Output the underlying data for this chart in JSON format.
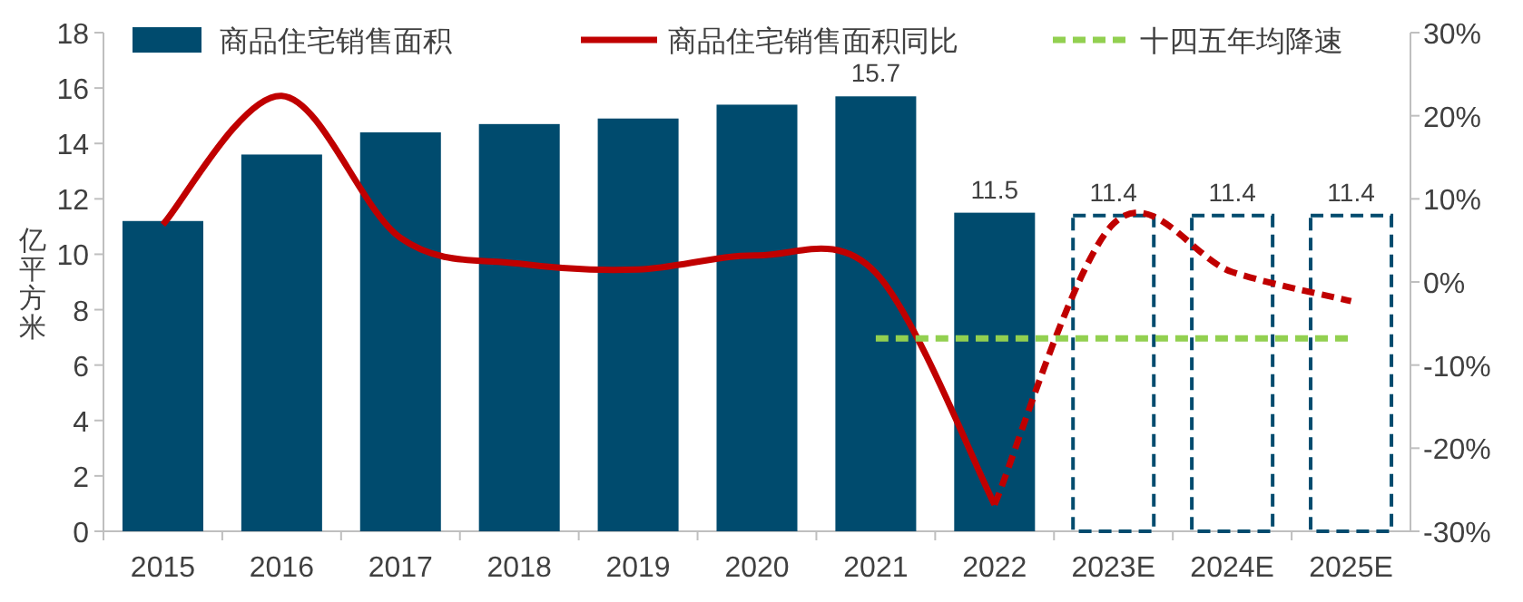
{
  "chart_data": {
    "type": "bar",
    "categories": [
      "2015",
      "2016",
      "2017",
      "2018",
      "2019",
      "2020",
      "2021",
      "2022",
      "2023E",
      "2024E",
      "2025E"
    ],
    "ylabel": "亿平方米",
    "ylim": [
      0,
      18
    ],
    "yticks": [
      0,
      2,
      4,
      6,
      8,
      10,
      12,
      14,
      16,
      18
    ],
    "y2lim": [
      -30,
      30
    ],
    "y2ticks": [
      {
        "value": -30,
        "label": "-30%"
      },
      {
        "value": -20,
        "label": "-20%"
      },
      {
        "value": -10,
        "label": "-10%"
      },
      {
        "value": 0,
        "label": "0%"
      },
      {
        "value": 10,
        "label": "10%"
      },
      {
        "value": 20,
        "label": "20%"
      },
      {
        "value": 30,
        "label": "30%"
      }
    ],
    "legend": "top",
    "grid": false,
    "marker": "none",
    "series": [
      {
        "name": "商品住宅销售面积",
        "color": "#004b6e",
        "values": [
          11.2,
          13.6,
          14.4,
          14.7,
          14.9,
          15.4,
          15.7,
          11.5,
          null,
          null,
          null
        ],
        "value_labels": [
          null,
          null,
          null,
          null,
          null,
          null,
          "15.7",
          "11.5",
          null,
          null,
          null
        ]
      },
      {
        "color": "#004b6e",
        "line_style": "dashed",
        "values": [
          null,
          null,
          null,
          null,
          null,
          null,
          null,
          null,
          11.4,
          11.4,
          11.4
        ],
        "value_labels": [
          null,
          null,
          null,
          null,
          null,
          null,
          null,
          null,
          "11.4",
          "11.4",
          "11.4"
        ]
      },
      {
        "name": "商品住宅销售面积同比",
        "type": "line",
        "axis": "y2",
        "color": "#c00000",
        "line_style": "solid",
        "values": [
          6.9,
          22.4,
          5.3,
          2.2,
          1.5,
          3.2,
          1.1,
          -26.8,
          null,
          null,
          null
        ]
      },
      {
        "type": "line",
        "axis": "y2",
        "color": "#c00000",
        "line_style": "dashed",
        "values": [
          null,
          null,
          null,
          null,
          null,
          null,
          null,
          -26.8,
          7.0,
          1.2,
          -2.3
        ]
      },
      {
        "name": "十四五年均降速",
        "type": "line",
        "axis": "y2",
        "color": "#92d050",
        "line_style": "dashed",
        "values": [
          null,
          null,
          null,
          null,
          null,
          null,
          -6.8,
          -6.8,
          -6.8,
          -6.8,
          -6.8
        ]
      }
    ]
  }
}
